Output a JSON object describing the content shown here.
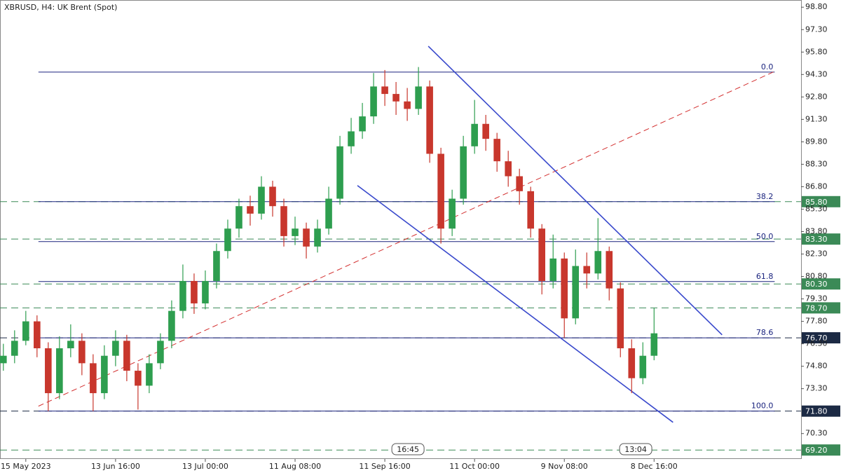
{
  "chart_data": {
    "type": "candlestick",
    "title": "XBRUSD, H4:  UK Brent (Spot)",
    "up_color": "#2e9e4f",
    "down_color": "#c8372d",
    "open": [
      75.0,
      75.5,
      76.5,
      77.8,
      76.0,
      73.0,
      76.0,
      76.5,
      75.0,
      73.0,
      75.5,
      76.5,
      74.5,
      73.5,
      75.0,
      76.5,
      78.5,
      80.5,
      79.0,
      80.5,
      82.5,
      84.0,
      85.5,
      85.0,
      86.8,
      85.5,
      83.5,
      84.0,
      82.8,
      84.0,
      86.0,
      89.5,
      90.5,
      91.5,
      93.5,
      93.0,
      92.5,
      92.0,
      93.5,
      89.0,
      84.0,
      86.0,
      89.5,
      91.0,
      90.0,
      88.5,
      87.5,
      86.5,
      84.0,
      80.5,
      82.0,
      78.0,
      81.5,
      81.0,
      82.5,
      80.0,
      76.0,
      74.0,
      75.5
    ],
    "high": [
      76.3,
      77.2,
      78.5,
      78.2,
      76.4,
      76.8,
      77.6,
      77.0,
      75.6,
      76.2,
      77.2,
      76.9,
      75.0,
      75.6,
      77.0,
      79.2,
      81.6,
      81.0,
      81.2,
      83.0,
      84.6,
      86.0,
      86.2,
      87.5,
      87.2,
      86.0,
      84.8,
      84.4,
      84.6,
      86.8,
      90.2,
      91.4,
      92.4,
      94.4,
      94.6,
      93.8,
      93.4,
      94.8,
      93.9,
      89.4,
      86.6,
      90.2,
      92.6,
      91.6,
      90.4,
      89.2,
      88.0,
      86.8,
      84.3,
      83.6,
      82.4,
      82.6,
      82.4,
      84.7,
      82.8,
      80.4,
      76.6,
      76.4,
      78.7
    ],
    "low": [
      74.5,
      75.0,
      76.2,
      75.4,
      71.8,
      72.6,
      75.4,
      74.2,
      71.8,
      72.6,
      74.8,
      73.8,
      71.9,
      73.0,
      74.6,
      76.0,
      78.0,
      78.3,
      78.6,
      80.0,
      82.0,
      83.4,
      84.2,
      84.6,
      84.8,
      82.8,
      82.9,
      82.0,
      82.4,
      83.6,
      85.6,
      89.0,
      90.0,
      91.0,
      92.2,
      91.6,
      91.2,
      91.6,
      88.4,
      83.0,
      83.5,
      85.6,
      89.0,
      89.2,
      87.8,
      86.8,
      85.6,
      83.4,
      79.6,
      80.0,
      76.7,
      77.6,
      80.0,
      80.6,
      79.2,
      75.4,
      73.0,
      73.6,
      75.2
    ],
    "close": [
      75.5,
      76.5,
      77.8,
      76.0,
      73.0,
      76.0,
      76.5,
      75.0,
      73.0,
      75.5,
      76.5,
      74.5,
      73.5,
      75.0,
      76.5,
      78.5,
      80.5,
      79.0,
      80.5,
      82.5,
      84.0,
      85.5,
      85.0,
      86.8,
      85.5,
      83.5,
      84.0,
      82.8,
      84.0,
      86.0,
      89.5,
      90.5,
      91.5,
      93.5,
      93.0,
      92.5,
      92.0,
      93.5,
      89.0,
      84.0,
      86.0,
      89.5,
      91.0,
      90.0,
      88.5,
      87.5,
      86.5,
      84.0,
      80.5,
      82.0,
      78.0,
      81.5,
      81.0,
      82.5,
      80.0,
      76.0,
      74.0,
      75.5,
      77.0
    ],
    "xlim": [
      -0.3,
      71.1
    ],
    "xticks": [
      {
        "value": 2,
        "label": "15 May 2023"
      },
      {
        "value": 10,
        "label": "13 Jun 16:00"
      },
      {
        "value": 18,
        "label": "13 Jul 00:00"
      },
      {
        "value": 26,
        "label": "11 Aug 08:00"
      },
      {
        "value": 34,
        "label": "11 Sep 16:00"
      },
      {
        "value": 42,
        "label": "11 Oct 00:00"
      },
      {
        "value": 50,
        "label": "9 Nov 08:00"
      },
      {
        "value": 58,
        "label": "8 Dec 16:00"
      }
    ],
    "ylim": [
      68.6,
      99.28
    ],
    "yticks": [
      {
        "value": 98.8,
        "label": "98.80"
      },
      {
        "value": 97.3,
        "label": "97.30"
      },
      {
        "value": 95.8,
        "label": "95.80"
      },
      {
        "value": 94.3,
        "label": "94.30"
      },
      {
        "value": 92.8,
        "label": "92.80"
      },
      {
        "value": 91.3,
        "label": "91.30"
      },
      {
        "value": 89.8,
        "label": "89.80"
      },
      {
        "value": 88.3,
        "label": "88.30"
      },
      {
        "value": 86.8,
        "label": "86.80"
      },
      {
        "value": 85.3,
        "label": "85.30"
      },
      {
        "value": 83.8,
        "label": "83.80"
      },
      {
        "value": 82.3,
        "label": "82.30"
      },
      {
        "value": 80.8,
        "label": "80.80"
      },
      {
        "value": 79.3,
        "label": "79.30"
      },
      {
        "value": 77.8,
        "label": "77.80"
      },
      {
        "value": 76.3,
        "label": "76.30"
      },
      {
        "value": 74.8,
        "label": "74.80"
      },
      {
        "value": 73.3,
        "label": "73.30"
      },
      {
        "value": 70.3,
        "label": "70.30"
      }
    ],
    "levels": [
      {
        "value": 85.8,
        "label": "85.80",
        "color": "#3b8a57"
      },
      {
        "value": 83.3,
        "label": "83.30",
        "color": "#3b8a57"
      },
      {
        "value": 80.3,
        "label": "80.30",
        "color": "#3b8a57"
      },
      {
        "value": 78.7,
        "label": "78.70",
        "color": "#3b8a57"
      },
      {
        "value": 76.7,
        "label": "76.70",
        "color": "#1c2a44"
      },
      {
        "value": 71.8,
        "label": "71.80",
        "color": "#1c2a44"
      },
      {
        "value": 69.2,
        "label": "69.20",
        "color": "#3b8a57"
      }
    ],
    "fibonacci": {
      "color": "#1a237e",
      "x": [
        3.125,
        68.75
      ],
      "levels": [
        {
          "label": "0.0",
          "price": 94.46
        },
        {
          "label": "38.2",
          "price": 85.8
        },
        {
          "label": "50.0",
          "price": 83.13
        },
        {
          "label": "61.8",
          "price": 80.46
        },
        {
          "label": "78.6",
          "price": 76.7
        },
        {
          "label": "100.0",
          "price": 71.8
        }
      ]
    },
    "trendlines": [
      {
        "color": "#d32f2f",
        "dashed": true,
        "x": [
          3.125,
          68.75
        ],
        "y": [
          72.13,
          94.51
        ]
      },
      {
        "color": "#3949cc",
        "dashed": false,
        "x": [
          37.875,
          64.06
        ],
        "y": [
          96.19,
          76.9
        ]
      },
      {
        "color": "#3949cc",
        "dashed": false,
        "x": [
          31.56,
          59.69
        ],
        "y": [
          86.88,
          71.05
        ]
      }
    ],
    "time_markers": [
      {
        "value": 36,
        "label": "16:45"
      },
      {
        "value": 56.3,
        "label": "13:04"
      }
    ]
  }
}
